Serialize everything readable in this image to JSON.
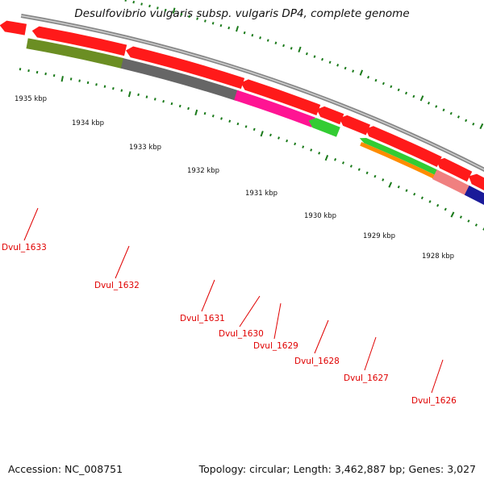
{
  "title": "Desulfovibrio vulgaris subsp. vulgaris DP4, complete genome",
  "footer": {
    "accession": "Accession: NC_008751",
    "summary": "Topology: circular; Length: 3,462,887 bp; Genes: 3,027"
  },
  "colors": {
    "backbone": "#888888",
    "cds_forward": "#ff1a1a",
    "tick": "#1a7a1a",
    "label": "#e00000"
  },
  "kbp_labels": [
    "1935 kbp",
    "1934 kbp",
    "1933 kbp",
    "1932 kbp",
    "1931 kbp",
    "1930 kbp",
    "1929 kbp",
    "1928 kbp"
  ],
  "genes": [
    {
      "name": "Dvul_1633",
      "color": "#6b8e23"
    },
    {
      "name": "Dvul_1632",
      "color": "#666666"
    },
    {
      "name": "Dvul_1631",
      "color": "#ff1493"
    },
    {
      "name": "Dvul_1630",
      "color": "#33cc33"
    },
    {
      "name": "Dvul_1629",
      "color": "#33cc33"
    },
    {
      "name": "Dvul_1628",
      "color": "#ff8c00"
    },
    {
      "name": "Dvul_1627",
      "color": "#f08080"
    },
    {
      "name": "Dvul_1626",
      "color": "#1a1a99"
    }
  ]
}
